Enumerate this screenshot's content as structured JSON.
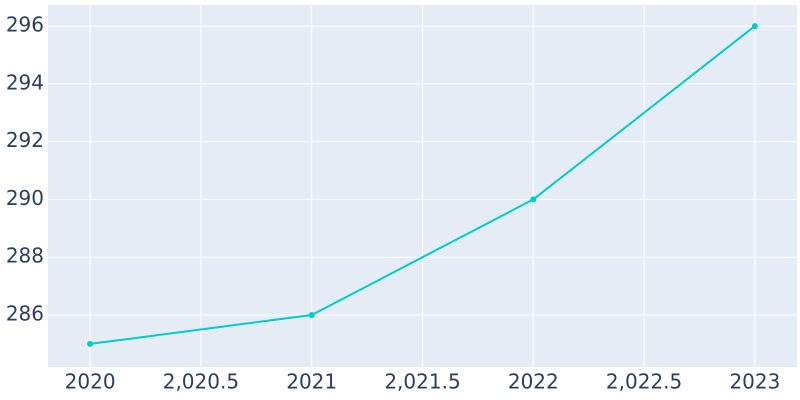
{
  "chart_data": {
    "type": "line",
    "x": [
      2020,
      2021,
      2022,
      2023
    ],
    "series": [
      {
        "color": "#00cccc",
        "values": [
          285,
          286,
          290,
          296
        ]
      }
    ],
    "xlim": [
      2019.81,
      2023.19
    ],
    "xticks": [
      2020,
      {
        "value": 2020.5,
        "label": "2,020.5"
      },
      2021,
      {
        "value": 2021.5,
        "label": "2,021.5"
      },
      2022,
      {
        "value": 2022.5,
        "label": "2,022.5"
      },
      2023
    ],
    "ylim": [
      284.2,
      296.73
    ],
    "yticks": [
      286,
      288,
      290,
      292,
      294,
      296
    ],
    "grid": true
  }
}
